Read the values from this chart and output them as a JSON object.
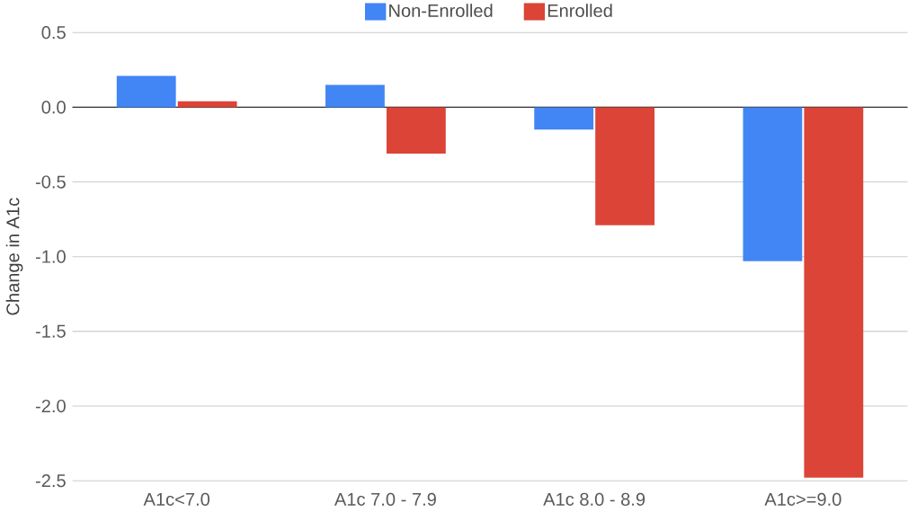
{
  "chart_data": {
    "type": "bar",
    "ylabel": "Change in A1c",
    "categories": [
      "A1c<7.0",
      "A1c 7.0 - 7.9",
      "A1c 8.0 - 8.9",
      "A1c>=9.0"
    ],
    "series": [
      {
        "name": "Non-Enrolled",
        "color": "#4285f4",
        "values": [
          0.21,
          0.15,
          -0.15,
          -1.03
        ]
      },
      {
        "name": "Enrolled",
        "color": "#db4437",
        "values": [
          0.04,
          -0.31,
          -0.79,
          -2.48
        ]
      }
    ],
    "ylim": [
      -2.5,
      0.5
    ],
    "yticks": [
      {
        "value": 0.5,
        "label": "0.5"
      },
      {
        "value": 0,
        "label": "0.0"
      },
      {
        "value": -0.5,
        "label": "-0.5"
      },
      {
        "value": -1,
        "label": "-1.0"
      },
      {
        "value": -1.5,
        "label": "-1.5"
      },
      {
        "value": -2,
        "label": "-2.0"
      },
      {
        "value": -2.5,
        "label": "-2.5"
      }
    ],
    "grid": "y",
    "legend": "top"
  }
}
